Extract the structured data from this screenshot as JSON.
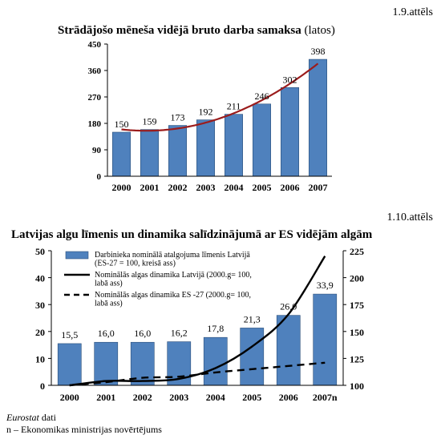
{
  "figure1": {
    "number": "1.9.attēls",
    "title": "Strādājošo mēneša vidējā bruto darba samaksa",
    "unit": "(latos)"
  },
  "figure2": {
    "number": "1.10.attēls",
    "title": "Latvijas algu līmenis un dinamika salīdzinājumā ar ES vidējām algām"
  },
  "source": {
    "line1_italic": "Eurostat",
    "line1_rest": " dati",
    "line2": "n – Ekonomikas ministrijas novērtējums"
  },
  "colors": {
    "bar_fill": "#4f81bd",
    "bar_stroke": "#2b4f7a",
    "trend": "#9b1c1c",
    "axis": "#000000"
  },
  "chart_data": [
    {
      "type": "bar",
      "title": "Strādājošo mēneša vidējā bruto darba samaksa (latos)",
      "categories": [
        "2000",
        "2001",
        "2002",
        "2003",
        "2004",
        "2005",
        "2006",
        "2007"
      ],
      "values": [
        150,
        159,
        173,
        192,
        211,
        246,
        302,
        398
      ],
      "data_labels": [
        "150",
        "159",
        "173",
        "192",
        "211",
        "246",
        "302",
        "398"
      ],
      "ylim": [
        0,
        450
      ],
      "yticks": [
        "0",
        "90",
        "180",
        "270",
        "360",
        "450"
      ],
      "trendline": {
        "type": "polynomial",
        "color": "#9b1c1c"
      },
      "grid": false,
      "legend": "none"
    },
    {
      "type": "bar",
      "title": "Latvijas algu līmenis un dinamika salīdzinājumā ar ES vidējām algām",
      "categories": [
        "2000",
        "2001",
        "2002",
        "2003",
        "2004",
        "2005",
        "2006",
        "2007n"
      ],
      "series": [
        {
          "name": "Darbinieka nominālā atalgojuma līmenis Latvijā (ES-27 = 100, kreisā ass)",
          "kind": "bar",
          "axis": "left",
          "values": [
            15.5,
            16.0,
            16.0,
            16.2,
            17.8,
            21.3,
            26.0,
            33.9
          ],
          "labels": [
            "15,5",
            "16,0",
            "16,0",
            "16,2",
            "17,8",
            "21,3",
            "26,0",
            "33,9"
          ]
        },
        {
          "name": "Nominālās algas dinamika Latvijā (2000.g= 100, labā ass)",
          "kind": "line",
          "style": "solid",
          "axis": "right",
          "values": [
            100,
            104,
            104,
            106,
            116,
            136,
            166,
            220
          ]
        },
        {
          "name": "Nominālās algas dinamika ES -27 (2000.g= 100, labā ass)",
          "kind": "line",
          "style": "dashed",
          "axis": "right",
          "values": [
            100,
            103,
            107,
            108,
            112,
            115,
            118,
            121
          ]
        }
      ],
      "ylim_left": [
        0,
        50
      ],
      "yticks_left": [
        "0",
        "10",
        "20",
        "30",
        "40",
        "50"
      ],
      "ylim_right": [
        100,
        225
      ],
      "yticks_right": [
        "100",
        "125",
        "150",
        "175",
        "200",
        "225"
      ],
      "grid": false,
      "legend": "top-left"
    }
  ]
}
